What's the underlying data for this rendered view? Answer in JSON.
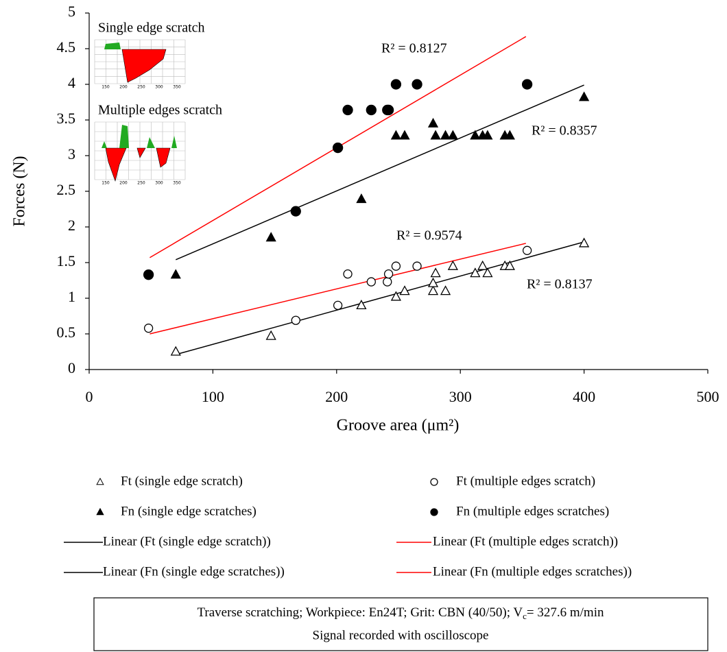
{
  "chart_data": {
    "type": "scatter",
    "xlabel": "Groove area (μm²)",
    "ylabel": "Forces (N)",
    "xlim": [
      0,
      500
    ],
    "ylim": [
      0,
      5
    ],
    "xticks": [
      0,
      100,
      200,
      300,
      400,
      500
    ],
    "yticks": [
      0,
      0.5,
      1,
      1.5,
      2,
      2.5,
      3,
      3.5,
      4,
      4.5,
      5
    ],
    "series": [
      {
        "name": "Ft (single edge scratch)",
        "type": "scatter",
        "marker": "triangle-open",
        "color": "#000000",
        "x": [
          70,
          147,
          220,
          248,
          255,
          278,
          278,
          280,
          288,
          294,
          312,
          318,
          322,
          336,
          340,
          400
        ],
        "values": [
          0.25,
          0.47,
          0.9,
          1.02,
          1.1,
          1.1,
          1.21,
          1.35,
          1.1,
          1.45,
          1.35,
          1.45,
          1.35,
          1.45,
          1.45,
          1.77
        ]
      },
      {
        "name": "Ft (multiple edges scratch)",
        "type": "scatter",
        "marker": "circle-open",
        "color": "#000000",
        "x": [
          48,
          167,
          201,
          209,
          228,
          241,
          242,
          248,
          265,
          354
        ],
        "values": [
          0.58,
          0.69,
          0.9,
          1.34,
          1.23,
          1.23,
          1.34,
          1.45,
          1.45,
          1.67
        ]
      },
      {
        "name": "Fn (single edge scratches)",
        "type": "scatter",
        "marker": "triangle-filled",
        "color": "#000000",
        "x": [
          70,
          147,
          220,
          248,
          255,
          278,
          280,
          288,
          294,
          312,
          318,
          322,
          336,
          340,
          400
        ],
        "values": [
          1.33,
          1.85,
          2.39,
          3.28,
          3.28,
          3.45,
          3.28,
          3.28,
          3.28,
          3.28,
          3.28,
          3.28,
          3.28,
          3.28,
          3.82
        ]
      },
      {
        "name": "Fn (multiple edges scratches)",
        "type": "scatter",
        "marker": "circle-filled",
        "color": "#000000",
        "x": [
          48,
          167,
          201,
          209,
          228,
          241,
          242,
          248,
          265,
          354
        ],
        "values": [
          1.33,
          2.22,
          3.11,
          3.64,
          3.64,
          3.64,
          3.64,
          4.0,
          4.0,
          4.0
        ]
      },
      {
        "name": "Linear (Ft (single edge scratch))",
        "type": "line",
        "color": "#000000",
        "x": [
          70,
          400
        ],
        "values": [
          0.21,
          1.79
        ]
      },
      {
        "name": "Linear (Ft (multiple edges scratch))",
        "type": "line",
        "color": "#ff0000",
        "x": [
          49,
          353
        ],
        "values": [
          0.5,
          1.77
        ]
      },
      {
        "name": "Linear (Fn (single edge scratches))",
        "type": "line",
        "color": "#000000",
        "x": [
          70,
          400
        ],
        "values": [
          1.54,
          3.99
        ]
      },
      {
        "name": "Linear (Fn (multiple edges scratches))",
        "type": "line",
        "color": "#ff0000",
        "x": [
          49,
          353
        ],
        "values": [
          1.57,
          4.67
        ]
      }
    ],
    "annotations": [
      "R² = 0.8127",
      "R² = 0.8357",
      "R² = 0.9574",
      "R² = 0.8137"
    ],
    "insets": [
      {
        "title": "Single edge scratch",
        "ticks": [
          "150",
          "200",
          "250",
          "300",
          "350"
        ]
      },
      {
        "title": "Multiple edges scratch",
        "ticks": [
          "150",
          "200",
          "250",
          "300",
          "350"
        ]
      }
    ],
    "note": {
      "line1": [
        "Traverse scratching; Workpiece: En24T; Grit: CBN (40/50); V",
        "c",
        "= 327.6 m/min"
      ],
      "line2": "Signal recorded with oscilloscope"
    }
  }
}
